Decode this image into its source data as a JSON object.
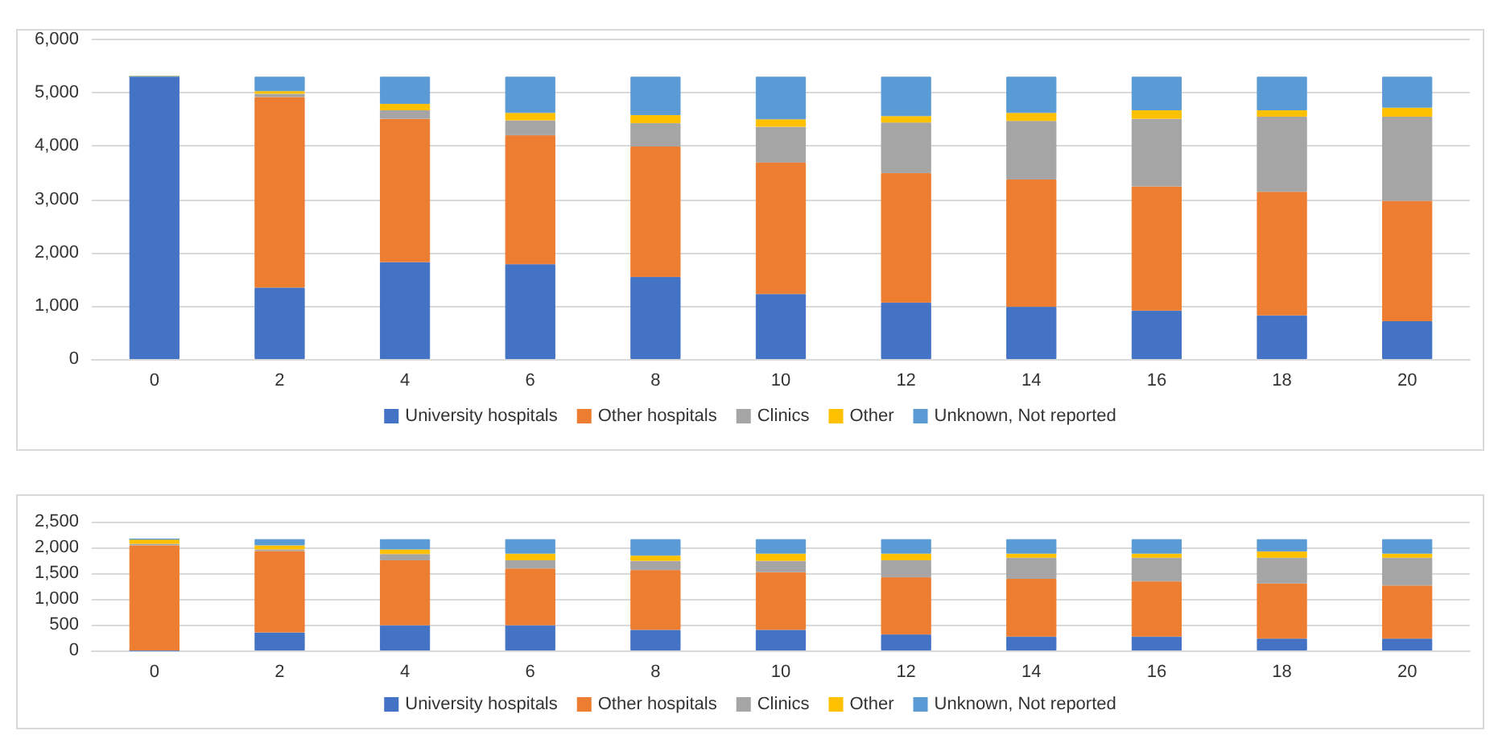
{
  "chart_data": [
    {
      "type": "bar",
      "stacked": true,
      "categories": [
        "0",
        "2",
        "4",
        "6",
        "8",
        "10",
        "12",
        "14",
        "16",
        "18",
        "20"
      ],
      "series": [
        {
          "name": "University hospitals",
          "color": "#4472c4",
          "values": [
            5300,
            1340,
            1820,
            1780,
            1540,
            1220,
            1060,
            980,
            910,
            820,
            710
          ]
        },
        {
          "name": "Other hospitals",
          "color": "#ed7d31",
          "values": [
            0,
            3580,
            2690,
            2420,
            2450,
            2470,
            2430,
            2390,
            2330,
            2320,
            2260
          ]
        },
        {
          "name": "Clinics",
          "color": "#a5a5a5",
          "values": [
            0,
            60,
            160,
            280,
            440,
            670,
            950,
            1100,
            1270,
            1410,
            1580
          ]
        },
        {
          "name": "Other",
          "color": "#ffc000",
          "values": [
            0,
            50,
            120,
            140,
            150,
            140,
            120,
            150,
            160,
            120,
            170
          ]
        },
        {
          "name": "Unknown, Not reported",
          "color": "#5b9bd5",
          "values": [
            0,
            270,
            510,
            680,
            720,
            800,
            740,
            680,
            630,
            630,
            580
          ]
        }
      ],
      "ylim": [
        0,
        6000
      ],
      "yticks": [
        {
          "value": 0,
          "label": "0"
        },
        {
          "value": 1000,
          "label": "1,000"
        },
        {
          "value": 2000,
          "label": "2,000"
        },
        {
          "value": 3000,
          "label": "3,000"
        },
        {
          "value": 4000,
          "label": "4,000"
        },
        {
          "value": 5000,
          "label": "5,000"
        },
        {
          "value": 6000,
          "label": "6,000"
        }
      ],
      "grid": "y",
      "legend": "bottom"
    },
    {
      "type": "bar",
      "stacked": true,
      "categories": [
        "0",
        "2",
        "4",
        "6",
        "8",
        "10",
        "12",
        "14",
        "16",
        "18",
        "20"
      ],
      "series": [
        {
          "name": "University hospitals",
          "color": "#4472c4",
          "values": [
            0,
            350,
            490,
            490,
            400,
            400,
            310,
            270,
            270,
            230,
            230
          ]
        },
        {
          "name": "Other hospitals",
          "color": "#ed7d31",
          "values": [
            2040,
            1580,
            1260,
            1100,
            1160,
            1120,
            1110,
            1120,
            1070,
            1070,
            1030
          ]
        },
        {
          "name": "Clinics",
          "color": "#a5a5a5",
          "values": [
            30,
            30,
            120,
            160,
            180,
            220,
            330,
            410,
            460,
            500,
            540
          ]
        },
        {
          "name": "Other",
          "color": "#ffc000",
          "values": [
            90,
            80,
            90,
            130,
            100,
            140,
            130,
            80,
            80,
            120,
            80
          ]
        },
        {
          "name": "Unknown, Not reported",
          "color": "#5b9bd5",
          "values": [
            0,
            120,
            200,
            280,
            320,
            280,
            280,
            280,
            280,
            240,
            280
          ]
        }
      ],
      "ylim": [
        0,
        2500
      ],
      "yticks": [
        {
          "value": 0,
          "label": "0"
        },
        {
          "value": 500,
          "label": "500"
        },
        {
          "value": 1000,
          "label": "1,000"
        },
        {
          "value": 1500,
          "label": "1,500"
        },
        {
          "value": 2000,
          "label": "2,000"
        },
        {
          "value": 2500,
          "label": "2,500"
        }
      ],
      "grid": "y",
      "legend": "bottom"
    }
  ]
}
